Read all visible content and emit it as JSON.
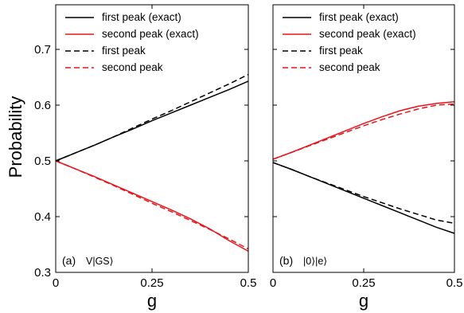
{
  "chart_data": [
    {
      "type": "line",
      "panel_label": "(a)",
      "state_label": "V|GS⟩",
      "xlabel": "g",
      "ylabel": "Probability",
      "xlim": [
        0,
        0.5
      ],
      "ylim": [
        0.3,
        0.78
      ],
      "x_ticks": [
        0,
        0.25,
        0.5
      ],
      "x_tick_labels": [
        "0",
        "0.25",
        "0.5"
      ],
      "y_ticks": [
        0.3,
        0.4,
        0.5,
        0.6,
        0.7
      ],
      "y_tick_labels": [
        "0.3",
        "0.4",
        "0.5",
        "0.6",
        "0.7"
      ],
      "legend_position": "top-left",
      "grid": false,
      "x": [
        0,
        0.05,
        0.1,
        0.15,
        0.2,
        0.25,
        0.3,
        0.35,
        0.4,
        0.45,
        0.5
      ],
      "series": [
        {
          "name": "first peak (exact)",
          "color": "#000000",
          "dash": "solid",
          "values": [
            0.5,
            0.514,
            0.528,
            0.543,
            0.557,
            0.572,
            0.586,
            0.6,
            0.614,
            0.628,
            0.643
          ]
        },
        {
          "name": "second peak (exact)",
          "color": "#e8141b",
          "dash": "solid",
          "values": [
            0.5,
            0.486,
            0.472,
            0.457,
            0.442,
            0.427,
            0.412,
            0.396,
            0.378,
            0.357,
            0.338
          ]
        },
        {
          "name": "first peak",
          "color": "#000000",
          "dash": "dashed",
          "values": [
            0.5,
            0.514,
            0.528,
            0.543,
            0.559,
            0.575,
            0.59,
            0.606,
            0.622,
            0.638,
            0.655
          ]
        },
        {
          "name": "second peak",
          "color": "#e8141b",
          "dash": "dashed",
          "values": [
            0.5,
            0.486,
            0.471,
            0.456,
            0.44,
            0.424,
            0.409,
            0.393,
            0.377,
            0.36,
            0.342
          ]
        }
      ]
    },
    {
      "type": "line",
      "panel_label": "(b)",
      "state_label": "|0⟩|e⟩",
      "xlabel": "g",
      "ylabel": "",
      "xlim": [
        0,
        0.5
      ],
      "ylim": [
        0.3,
        0.78
      ],
      "x_ticks": [
        0,
        0.25,
        0.5
      ],
      "x_tick_labels": [
        "0",
        "0.25",
        "0.5"
      ],
      "y_ticks": [
        0.3,
        0.4,
        0.5,
        0.6,
        0.7
      ],
      "y_tick_labels": [
        "0.3",
        "0.4",
        "0.5",
        "0.6",
        "0.7"
      ],
      "legend_position": "top-left",
      "grid": false,
      "x": [
        0,
        0.05,
        0.1,
        0.15,
        0.2,
        0.25,
        0.3,
        0.35,
        0.4,
        0.45,
        0.5
      ],
      "series": [
        {
          "name": "first peak (exact)",
          "color": "#000000",
          "dash": "solid",
          "values": [
            0.497,
            0.485,
            0.472,
            0.459,
            0.446,
            0.433,
            0.42,
            0.407,
            0.394,
            0.381,
            0.37
          ]
        },
        {
          "name": "second peak (exact)",
          "color": "#e8141b",
          "dash": "solid",
          "values": [
            0.503,
            0.515,
            0.528,
            0.541,
            0.554,
            0.567,
            0.579,
            0.59,
            0.598,
            0.603,
            0.606
          ]
        },
        {
          "name": "first peak",
          "color": "#000000",
          "dash": "dashed",
          "values": [
            0.497,
            0.485,
            0.472,
            0.46,
            0.448,
            0.436,
            0.425,
            0.414,
            0.404,
            0.394,
            0.388
          ]
        },
        {
          "name": "second peak",
          "color": "#e8141b",
          "dash": "dashed",
          "values": [
            0.503,
            0.515,
            0.527,
            0.539,
            0.551,
            0.563,
            0.574,
            0.584,
            0.593,
            0.6,
            0.602
          ]
        }
      ]
    }
  ]
}
